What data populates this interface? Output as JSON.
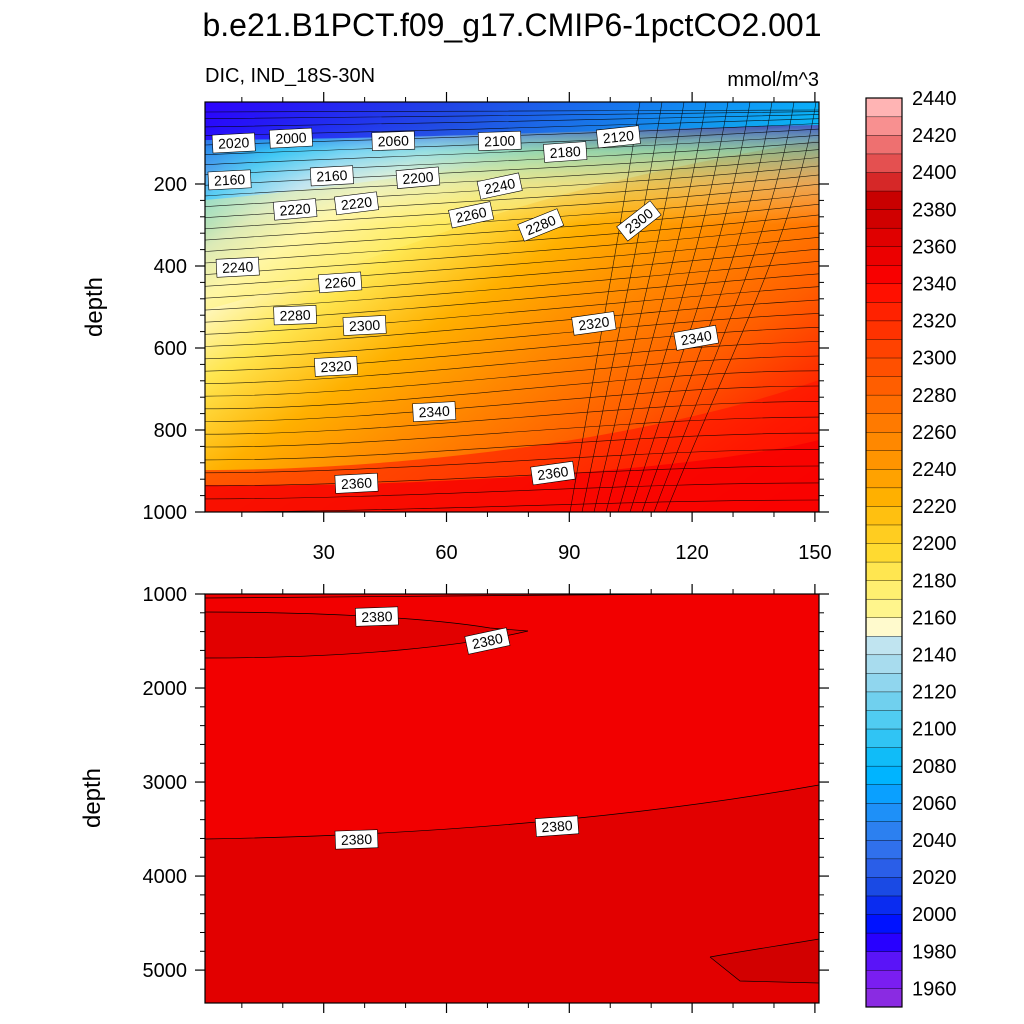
{
  "chart_data": {
    "type": "heatmap",
    "title": "b.e21.B1PCT.f09_g17.CMIP6-1pctCO2.001",
    "subtitle_left": "DIC, IND_18S-30N",
    "subtitle_right": "mmol/m^3",
    "colorbar": {
      "levels": [
        1960,
        1970,
        1980,
        1990,
        2000,
        2010,
        2020,
        2030,
        2040,
        2050,
        2060,
        2070,
        2080,
        2090,
        2100,
        2110,
        2120,
        2130,
        2140,
        2150,
        2160,
        2170,
        2180,
        2190,
        2200,
        2210,
        2220,
        2230,
        2240,
        2250,
        2260,
        2270,
        2280,
        2290,
        2300,
        2310,
        2320,
        2330,
        2340,
        2350,
        2360,
        2370,
        2380,
        2390,
        2400,
        2410,
        2420,
        2430,
        2440,
        2450
      ],
      "tick_labels": [
        "2440",
        "2420",
        "2400",
        "2380",
        "2360",
        "2340",
        "2320",
        "2300",
        "2280",
        "2260",
        "2240",
        "2220",
        "2200",
        "2180",
        "2160",
        "2140",
        "2120",
        "2100",
        "2080",
        "2060",
        "2040",
        "2020",
        "2000",
        "1980",
        "1960"
      ],
      "colors": [
        "#8a2be2",
        "#7a1ef0",
        "#5a14f8",
        "#2800ff",
        "#0012ff",
        "#0a2cf0",
        "#1a4ae4",
        "#2a5ee8",
        "#3070ec",
        "#2c80f0",
        "#1e90f8",
        "#0aa0ff",
        "#00b4ff",
        "#10bcf8",
        "#30c4f4",
        "#50ccf2",
        "#70d0ee",
        "#90d6ee",
        "#a8dcee",
        "#c0e4f0",
        "#fffacd",
        "#fff58c",
        "#ffef70",
        "#ffe650",
        "#ffda30",
        "#ffcd20",
        "#ffc010",
        "#ffb000",
        "#ffa200",
        "#ff9400",
        "#ff8800",
        "#ff7a00",
        "#ff6c00",
        "#ff5e00",
        "#ff5000",
        "#ff4200",
        "#ff3200",
        "#ff2200",
        "#ff1000",
        "#f80000",
        "#ec0000",
        "#e00000",
        "#d00000",
        "#c80000",
        "#d62828",
        "#e45050",
        "#ee7070",
        "#f89090",
        "#ffb4b4"
      ]
    },
    "panels": [
      {
        "name": "upper",
        "xlim": [
          1,
          151
        ],
        "ylim": [
          0,
          1000
        ],
        "y_reversed": true,
        "xticks": [
          30,
          60,
          90,
          120,
          150
        ],
        "xtick_labels": [
          "30",
          "60",
          "90",
          "120",
          "150"
        ],
        "yticks": [
          200,
          400,
          600,
          800,
          1000
        ],
        "ytick_labels": [
          "200",
          "400",
          "600",
          "800",
          "1000"
        ],
        "ylabel": "depth",
        "contour_labels": [
          {
            "text": "2020",
            "x": 8,
            "y": 100,
            "angle": -3
          },
          {
            "text": "2000",
            "x": 22,
            "y": 88,
            "angle": -3
          },
          {
            "text": "2060",
            "x": 47,
            "y": 95,
            "angle": -2
          },
          {
            "text": "2100",
            "x": 73,
            "y": 95,
            "angle": -2
          },
          {
            "text": "2180",
            "x": 89,
            "y": 122,
            "angle": -4
          },
          {
            "text": "2120",
            "x": 102,
            "y": 85,
            "angle": -6
          },
          {
            "text": "2160",
            "x": 7,
            "y": 190,
            "angle": -3
          },
          {
            "text": "2160",
            "x": 32,
            "y": 180,
            "angle": -3
          },
          {
            "text": "2200",
            "x": 53,
            "y": 185,
            "angle": -5
          },
          {
            "text": "2240",
            "x": 73,
            "y": 205,
            "angle": -12
          },
          {
            "text": "2220",
            "x": 23,
            "y": 262,
            "angle": -5
          },
          {
            "text": "2220",
            "x": 38,
            "y": 247,
            "angle": -7
          },
          {
            "text": "2260",
            "x": 66,
            "y": 275,
            "angle": -12
          },
          {
            "text": "2280",
            "x": 83,
            "y": 300,
            "angle": -22
          },
          {
            "text": "2300",
            "x": 107,
            "y": 290,
            "angle": -38
          },
          {
            "text": "2240",
            "x": 9,
            "y": 403,
            "angle": -3
          },
          {
            "text": "2260",
            "x": 34,
            "y": 440,
            "angle": -4
          },
          {
            "text": "2280",
            "x": 23,
            "y": 520,
            "angle": -2
          },
          {
            "text": "2300",
            "x": 40,
            "y": 545,
            "angle": -3
          },
          {
            "text": "2320",
            "x": 96,
            "y": 540,
            "angle": -8
          },
          {
            "text": "2340",
            "x": 121,
            "y": 575,
            "angle": -10
          },
          {
            "text": "2320",
            "x": 33,
            "y": 645,
            "angle": -3
          },
          {
            "text": "2340",
            "x": 57,
            "y": 755,
            "angle": -3
          },
          {
            "text": "2360",
            "x": 38,
            "y": 930,
            "angle": -3
          },
          {
            "text": "2360",
            "x": 86,
            "y": 905,
            "angle": -8
          }
        ]
      },
      {
        "name": "lower",
        "xlim": [
          1,
          151
        ],
        "ylim": [
          1000,
          5350
        ],
        "y_reversed": true,
        "yticks": [
          1000,
          2000,
          3000,
          4000,
          5000
        ],
        "ytick_labels": [
          "1000",
          "2000",
          "3000",
          "4000",
          "5000"
        ],
        "ylabel": "depth",
        "contour_labels": [
          {
            "text": "2380",
            "x": 43,
            "y": 1240,
            "angle": -2
          },
          {
            "text": "2380",
            "x": 70,
            "y": 1500,
            "angle": -12
          },
          {
            "text": "2380",
            "x": 38,
            "y": 3610,
            "angle": -2
          },
          {
            "text": "2380",
            "x": 87,
            "y": 3470,
            "angle": -4
          }
        ]
      }
    ]
  }
}
